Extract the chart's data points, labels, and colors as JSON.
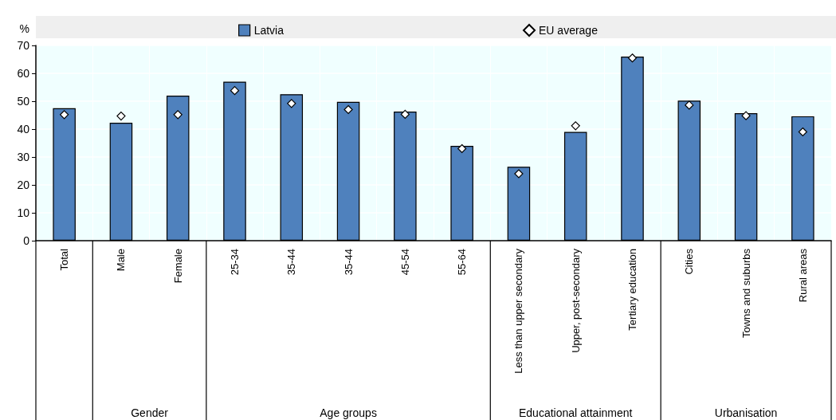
{
  "chart_data": {
    "type": "bar",
    "ylabel": "%",
    "categories": [
      "Total",
      "Male",
      "Female",
      "25-34",
      "35-44",
      "35-44",
      "45-54",
      "55-64",
      "Less than upper secondary",
      "Upper, post-secondary",
      "Tertiary education",
      "Cities",
      "Towns and suburbs",
      "Rural areas"
    ],
    "series": [
      {
        "name": "Latvia",
        "color": "#4f81bd",
        "values": [
          47.5,
          42.3,
          52,
          57,
          52.5,
          49.8,
          46.3,
          34,
          26.5,
          39,
          66,
          50.2,
          45.7,
          44.6
        ]
      },
      {
        "name": "EU average",
        "type": "scatter",
        "color": "#ffffff",
        "marker": "diamond",
        "values": [
          45.2,
          44.7,
          45.2,
          53.8,
          49.2,
          47,
          45.3,
          33,
          24,
          41.2,
          65.5,
          48.6,
          44.8,
          39
        ]
      }
    ],
    "ylim": [
      0,
      70
    ],
    "yticks": [
      0,
      10,
      20,
      30,
      40,
      50,
      60,
      70
    ],
    "grid": true,
    "legend": "top",
    "annotations": [
      "Gender",
      "Age groups",
      "Educational attainment",
      "Urbanisation"
    ]
  }
}
